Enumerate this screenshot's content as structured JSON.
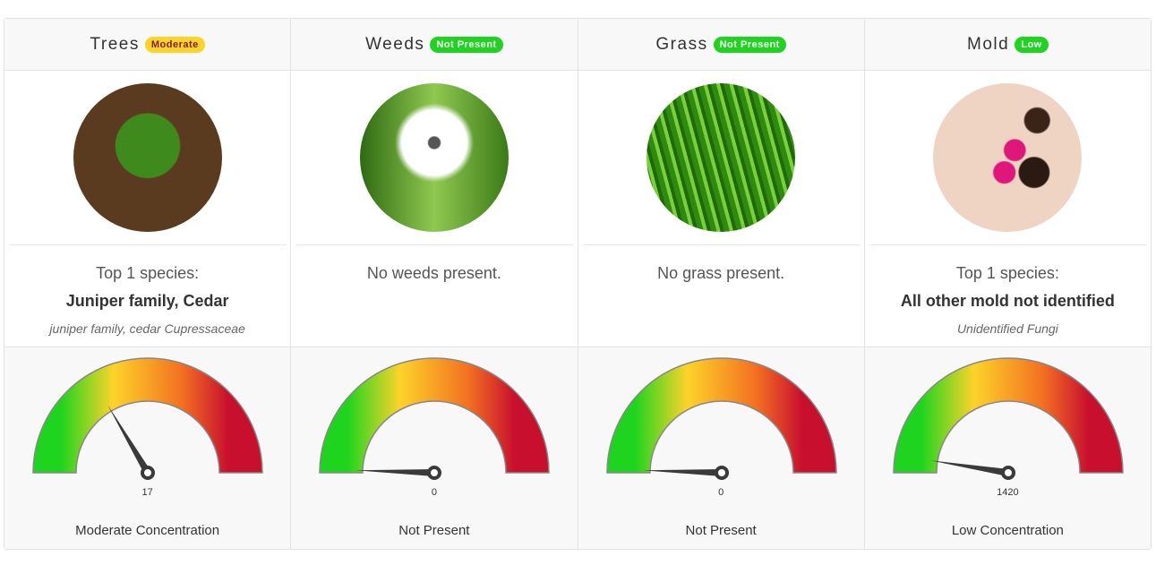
{
  "columns": [
    {
      "title": "Trees",
      "badge": "Moderate",
      "badge_bg": "#fdd32a",
      "badge_fg": "#7a1f1f",
      "image": "tree",
      "line1": "Top 1 species:",
      "line2": "Juniper family, Cedar",
      "line3": "juniper family, cedar Cupressaceae",
      "value": "17",
      "needle_level": 0.33,
      "status": "Moderate Concentration"
    },
    {
      "title": "Weeds",
      "badge": "Not Present",
      "badge_bg": "#1ed41e",
      "badge_fg": "#ffffff",
      "image": "dandelion",
      "line1": "No weeds present.",
      "line2": "",
      "line3": "",
      "value": "0",
      "needle_level": 0.01,
      "status": "Not Present"
    },
    {
      "title": "Grass",
      "badge": "Not Present",
      "badge_bg": "#1ed41e",
      "badge_fg": "#ffffff",
      "image": "grass",
      "line1": "No grass present.",
      "line2": "",
      "line3": "",
      "value": "0",
      "needle_level": 0.01,
      "status": "Not Present"
    },
    {
      "title": "Mold",
      "badge": "Low",
      "badge_bg": "#1ed41e",
      "badge_fg": "#ffffff",
      "image": "mold",
      "line1": "Top 1 species:",
      "line2": "All other mold not identified",
      "line3": "Unidentified Fungi",
      "value": "1420",
      "needle_level": 0.05,
      "status": "Low Concentration"
    }
  ],
  "gauge_colors": [
    "#1ed41e",
    "#fdd32a",
    "#f37021",
    "#c8102e"
  ]
}
